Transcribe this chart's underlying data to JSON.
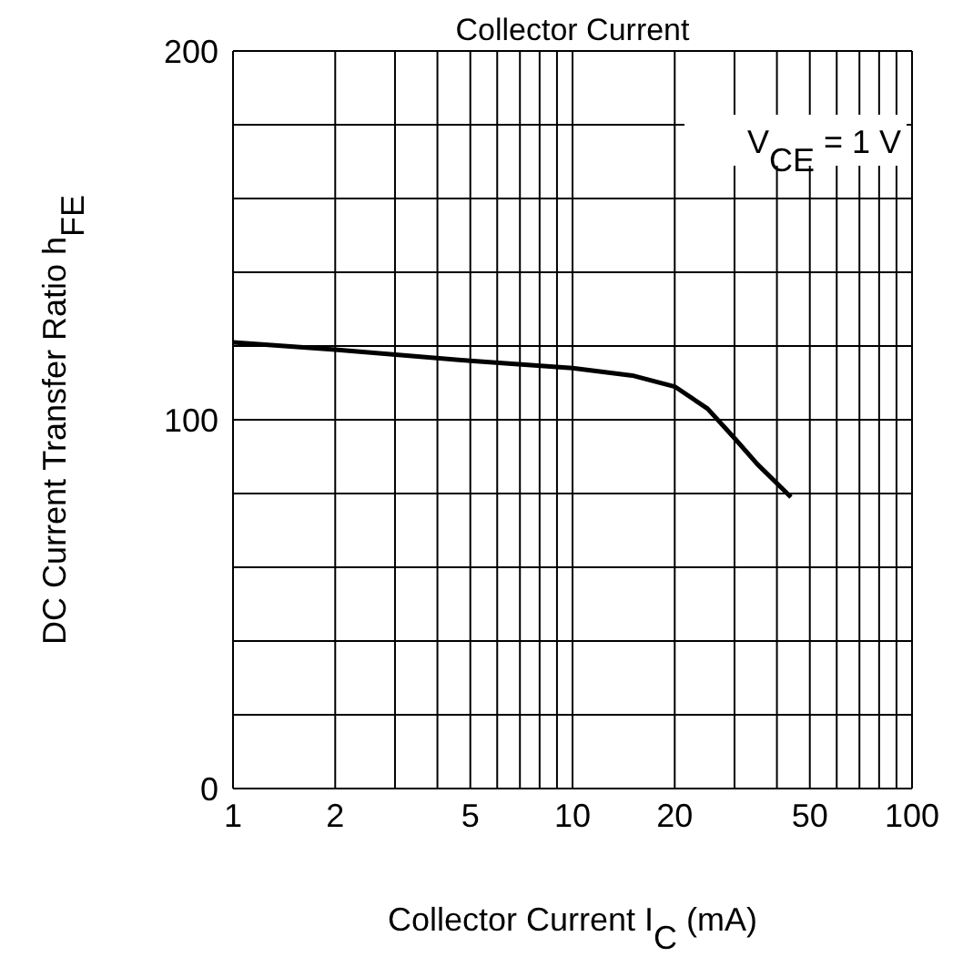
{
  "chart_data": {
    "type": "line",
    "title": "Collector Current",
    "xlabel": "Collector Current  I$_{C}$  (mA)",
    "ylabel": "DC Current Transfer Ratio  h$_{FE}$",
    "annotations": [
      "V$_{CE}$ = 1 V"
    ],
    "log": "x",
    "grid": true,
    "marker": "none",
    "line_style": "solid",
    "xlim": [
      1,
      100
    ],
    "xticks": [
      1,
      2,
      {
        "value": 3,
        "label": null
      },
      {
        "value": 4,
        "label": null
      },
      5,
      {
        "value": 6,
        "label": null
      },
      {
        "value": 7,
        "label": null
      },
      {
        "value": 8,
        "label": null
      },
      {
        "value": 9,
        "label": null
      },
      10,
      20,
      {
        "value": 30,
        "label": null
      },
      {
        "value": 40,
        "label": null
      },
      50,
      {
        "value": 60,
        "label": null
      },
      {
        "value": 70,
        "label": null
      },
      {
        "value": 80,
        "label": null
      },
      {
        "value": 90,
        "label": null
      },
      100
    ],
    "ylim": [
      0,
      200
    ],
    "yticks": [
      0,
      {
        "value": 20,
        "label": null
      },
      {
        "value": 40,
        "label": null
      },
      {
        "value": 60,
        "label": null
      },
      {
        "value": 80,
        "label": null
      },
      100,
      {
        "value": 120,
        "label": null
      },
      {
        "value": 140,
        "label": null
      },
      {
        "value": 160,
        "label": null
      },
      {
        "value": 180,
        "label": null
      },
      200
    ],
    "series": [
      {
        "color": "#000000",
        "x": [
          1,
          2,
          5,
          10,
          15,
          20,
          25,
          30,
          35,
          44
        ],
        "values": [
          121,
          119,
          116,
          114,
          112,
          109,
          103,
          95,
          88,
          79
        ]
      }
    ]
  }
}
